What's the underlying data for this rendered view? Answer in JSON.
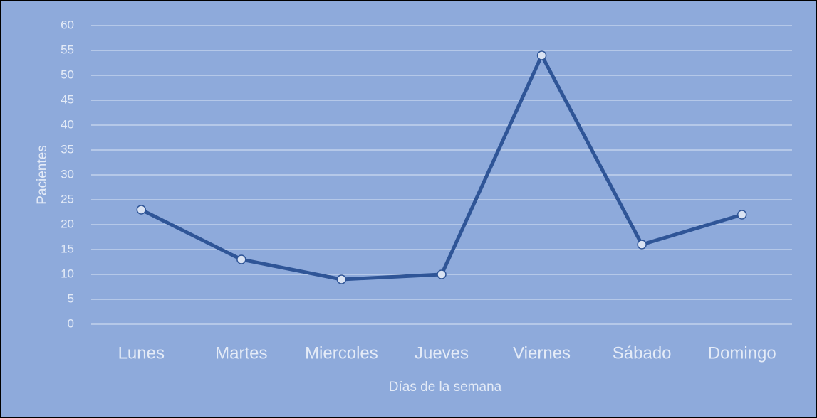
{
  "chart_data": {
    "type": "line",
    "x_label": "Días de la semana",
    "y_label": "Pacientes",
    "categories": [
      "Lunes",
      "Martes",
      "Miercoles",
      "Jueves",
      "Viernes",
      "Sábado",
      "Domingo"
    ],
    "series": [
      {
        "name": "Pacientes",
        "color": "#2f5597",
        "values": [
          23,
          13,
          9,
          10,
          54,
          16,
          22
        ]
      }
    ],
    "ylim": [
      0,
      60
    ],
    "yticks": [
      0,
      5,
      10,
      15,
      20,
      25,
      30,
      35,
      40,
      45,
      50,
      55,
      60
    ],
    "grid": true
  }
}
